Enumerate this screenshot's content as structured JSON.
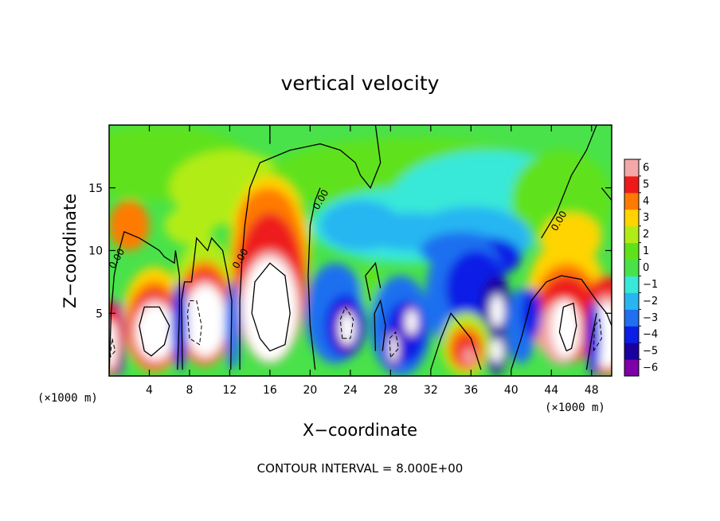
{
  "chart_data": {
    "type": "heatmap",
    "title": "vertical velocity",
    "xlabel": "X−coordinate",
    "ylabel": "Z−coordinate",
    "x_unit_label": "(×1000 m)",
    "y_unit_label": "(×1000 m)",
    "xlim": [
      0,
      50
    ],
    "ylim": [
      0,
      20
    ],
    "x_ticks": [
      4,
      8,
      12,
      16,
      20,
      24,
      28,
      32,
      36,
      40,
      44,
      48
    ],
    "y_ticks": [
      5,
      10,
      15
    ],
    "colorbar": {
      "levels": [
        -6,
        -5,
        -4,
        -3,
        -2,
        -1,
        0,
        1,
        2,
        3,
        4,
        5,
        6
      ],
      "labels": [
        "−6",
        "−5",
        "−4",
        "−3",
        "−2",
        "−1",
        "0",
        "1",
        "2",
        "3",
        "4",
        "5",
        "6"
      ],
      "colors": [
        "#7d00a8",
        "#1b00a0",
        "#0a1ee6",
        "#1f6ff0",
        "#27b6f2",
        "#38e8d8",
        "#49e24a",
        "#5fe21a",
        "#b2ec18",
        "#ffd400",
        "#ff7a00",
        "#ee1a1a",
        "#f4a7a7"
      ]
    },
    "contour_zero_label": "0.00",
    "features": [
      {
        "kind": "updraft",
        "x": 4.5,
        "z": 3.5,
        "w": 20
      },
      {
        "kind": "updraft",
        "x": 9.5,
        "z": 5.0,
        "w": 20
      },
      {
        "kind": "updraft",
        "x": 16.0,
        "z": 5.5,
        "w": 24
      },
      {
        "kind": "updraft",
        "x": 45.5,
        "z": 4.0,
        "w": 16
      },
      {
        "kind": "updraft",
        "x": 49.5,
        "z": 3.0,
        "w": 12
      },
      {
        "kind": "updraft",
        "x": 0.2,
        "z": 2.5,
        "w": 10
      },
      {
        "kind": "updraft",
        "x": 35.5,
        "z": 1.8,
        "w": 5
      },
      {
        "kind": "downdraft",
        "x": 23.5,
        "z": 4.0,
        "w": -10
      },
      {
        "kind": "downdraft",
        "x": 29.5,
        "z": 3.5,
        "w": -10
      },
      {
        "kind": "downdraft",
        "x": 38.5,
        "z": 4.5,
        "w": -10
      },
      {
        "kind": "downdraft",
        "x": 35.5,
        "z": 10.0,
        "w": -4
      }
    ],
    "contour_interval_text": "CONTOUR INTERVAL = 8.000E+00"
  }
}
